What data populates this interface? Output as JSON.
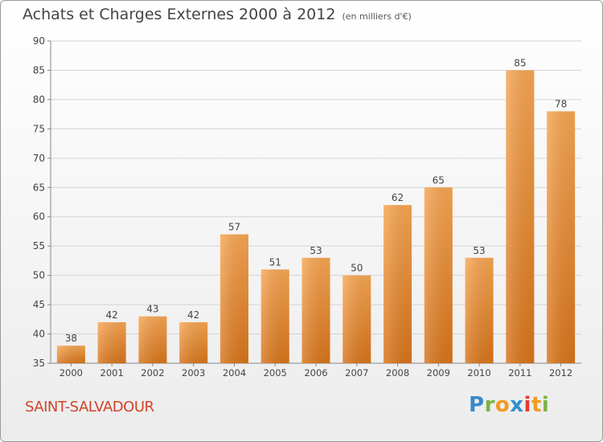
{
  "header": {
    "title": "Achats et Charges Externes 2000 à 2012",
    "subtitle": "(en milliers d'€)"
  },
  "footer": {
    "place": "SAINT-SALVADOUR",
    "logo_letters": [
      "P",
      "r",
      "o",
      "x",
      "i",
      "t",
      "i"
    ]
  },
  "colors": {
    "bar_light": "#f7a653",
    "bar_dark": "#d8741a",
    "place_text": "#d1442a"
  },
  "chart_data": {
    "type": "bar",
    "title": "Achats et Charges Externes 2000 à 2012",
    "subtitle": "(en milliers d'€)",
    "xlabel": "",
    "ylabel": "",
    "categories": [
      "2000",
      "2001",
      "2002",
      "2003",
      "2004",
      "2005",
      "2006",
      "2007",
      "2008",
      "2009",
      "2010",
      "2011",
      "2012"
    ],
    "values": [
      38,
      42,
      43,
      42,
      57,
      51,
      53,
      50,
      62,
      65,
      53,
      85,
      78
    ],
    "ylim": [
      35,
      90
    ],
    "yticks": [
      35,
      40,
      45,
      50,
      55,
      60,
      65,
      70,
      75,
      80,
      85,
      90
    ],
    "grid": true,
    "legend": "none"
  }
}
